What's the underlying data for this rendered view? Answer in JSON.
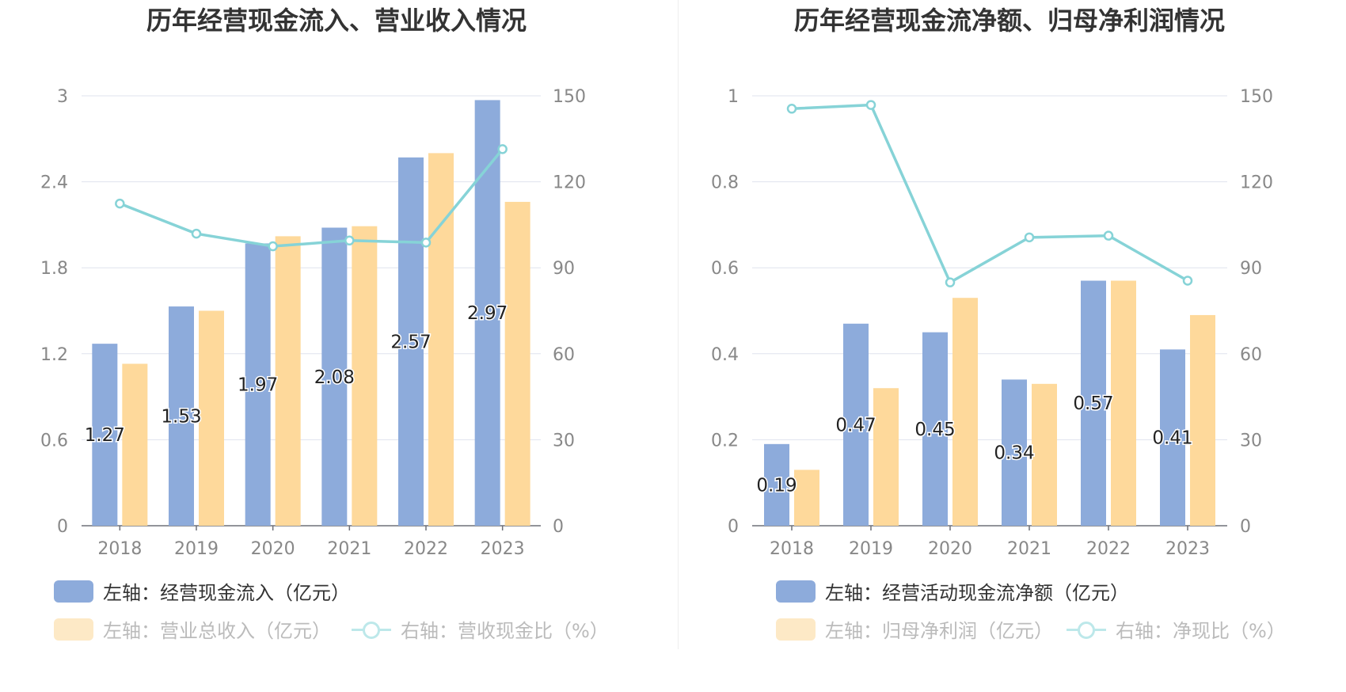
{
  "colors": {
    "blue_bar": "#8dabdb",
    "yellow_bar": "#fed99b",
    "line": "#86d3d7",
    "grid": "#dfe3ee",
    "axis_text": "#888888"
  },
  "chart_data": [
    {
      "type": "bar",
      "title": "历年经营现金流入、营业收入情况",
      "categories": [
        "2018",
        "2019",
        "2020",
        "2021",
        "2022",
        "2023"
      ],
      "left_axis": {
        "ylim": [
          0,
          3
        ],
        "ticks": [
          "0",
          "0.6",
          "1.2",
          "1.8",
          "2.4",
          "3"
        ]
      },
      "right_axis": {
        "ylim": [
          0,
          150
        ],
        "ticks": [
          "0",
          "30",
          "60",
          "90",
          "120",
          "150"
        ]
      },
      "series": [
        {
          "name": "左轴：经营现金流入（亿元）",
          "type": "bar",
          "axis": "left",
          "color": "#8dabdb",
          "values": [
            1.27,
            1.53,
            1.97,
            2.08,
            2.57,
            2.97
          ],
          "labels": [
            "1.27",
            "1.53",
            "1.97",
            "2.08",
            "2.57",
            "2.97"
          ]
        },
        {
          "name": "左轴：营业总收入（亿元）",
          "type": "bar",
          "axis": "left",
          "color": "#fed99b",
          "values": [
            1.13,
            1.5,
            2.02,
            2.09,
            2.6,
            2.26
          ]
        },
        {
          "name": "右轴：营收现金比（%）",
          "type": "line",
          "axis": "right",
          "color": "#86d3d7",
          "values": [
            112.4,
            101.9,
            97.5,
            99.5,
            98.8,
            131.4
          ]
        }
      ],
      "legend": [
        "左轴：经营现金流入（亿元）",
        "左轴：营业总收入（亿元）",
        "右轴：营收现金比（%）"
      ]
    },
    {
      "type": "bar",
      "title": "历年经营现金流净额、归母净利润情况",
      "categories": [
        "2018",
        "2019",
        "2020",
        "2021",
        "2022",
        "2023"
      ],
      "left_axis": {
        "ylim": [
          0,
          1
        ],
        "ticks": [
          "0",
          "0.2",
          "0.4",
          "0.6",
          "0.8",
          "1"
        ]
      },
      "right_axis": {
        "ylim": [
          0,
          150
        ],
        "ticks": [
          "0",
          "30",
          "60",
          "90",
          "120",
          "150"
        ]
      },
      "series": [
        {
          "name": "左轴：经营活动现金流净额（亿元）",
          "type": "bar",
          "axis": "left",
          "color": "#8dabdb",
          "values": [
            0.19,
            0.47,
            0.45,
            0.34,
            0.57,
            0.41
          ],
          "labels": [
            "0.19",
            "0.47",
            "0.45",
            "0.34",
            "0.57",
            "0.41"
          ]
        },
        {
          "name": "左轴：归母净利润（亿元）",
          "type": "bar",
          "axis": "left",
          "color": "#fed99b",
          "values": [
            0.13,
            0.32,
            0.53,
            0.33,
            0.57,
            0.49
          ]
        },
        {
          "name": "右轴：净现比（%）",
          "type": "line",
          "axis": "right",
          "color": "#86d3d7",
          "values": [
            145.5,
            146.8,
            84.9,
            100.6,
            101.2,
            85.5
          ]
        }
      ],
      "legend": [
        "左轴：经营活动现金流净额（亿元）",
        "左轴：归母净利润（亿元）",
        "右轴：净现比（%）"
      ]
    }
  ]
}
